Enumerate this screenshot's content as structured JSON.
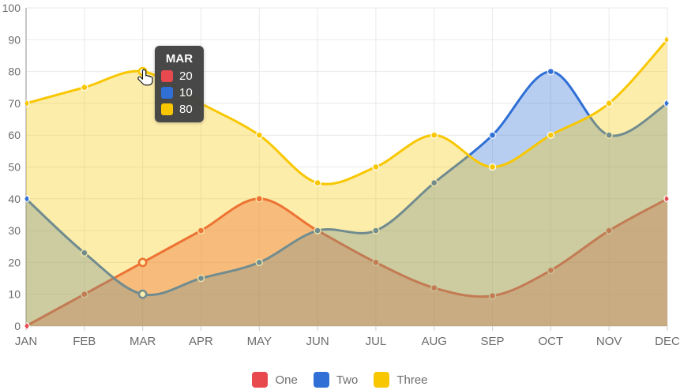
{
  "chart_data": {
    "type": "area",
    "title": "",
    "xlabel": "",
    "ylabel": "",
    "categories": [
      "JAN",
      "FEB",
      "MAR",
      "APR",
      "MAY",
      "JUN",
      "JUL",
      "AUG",
      "SEP",
      "OCT",
      "NOV",
      "DEC"
    ],
    "series": [
      {
        "name": "One",
        "color": "#e8494e",
        "fill_opacity": 0.4,
        "values": [
          0,
          10,
          20,
          30,
          40,
          30,
          20,
          12,
          9.5,
          17.5,
          30,
          40
        ]
      },
      {
        "name": "Two",
        "color": "#2f6fd6",
        "fill_opacity": 0.34,
        "values": [
          40,
          23,
          10,
          15,
          20,
          30,
          30,
          45,
          60,
          80,
          60,
          70
        ]
      },
      {
        "name": "Three",
        "color": "#f8c700",
        "fill_opacity": 0.33,
        "values": [
          70,
          75,
          80,
          70,
          60,
          45,
          50,
          60,
          50,
          60,
          70,
          90
        ]
      }
    ],
    "ylim": [
      0,
      100
    ],
    "yticks": [
      0,
      10,
      20,
      30,
      40,
      50,
      60,
      70,
      80,
      90,
      100
    ],
    "grid": true,
    "curve": "smooth",
    "legend_position": "bottom",
    "hover_category": "MAR",
    "hover_index": 2
  },
  "tooltip": {
    "title": "MAR",
    "rows": [
      {
        "series": "One",
        "color": "#e8494e",
        "value": "20"
      },
      {
        "series": "Two",
        "color": "#2f6fd6",
        "value": "10"
      },
      {
        "series": "Three",
        "color": "#f8c700",
        "value": "80"
      }
    ]
  },
  "colors": {
    "grid_line": "#e9e9e9",
    "zero_line": "#d6d6d6",
    "y_axis_line": "#8f8f8f",
    "tick": "#cfcfcf",
    "axis_text": "#6c6c6c",
    "legend_text": "#6e6e6e",
    "tooltip_bg": "#424242",
    "tooltip_text": "#ffffff",
    "marker_ring": "rgba(255,255,255,0.85)"
  }
}
